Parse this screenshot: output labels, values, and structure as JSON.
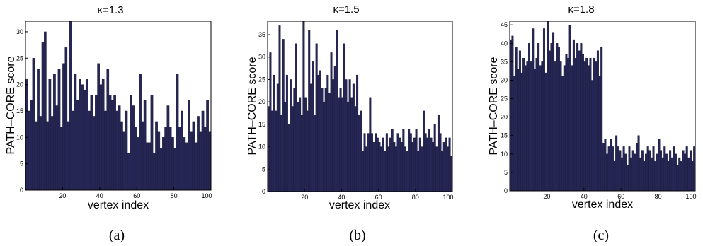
{
  "figure": {
    "captions": [
      "(a)",
      "(b)",
      "(c)"
    ]
  },
  "colors": {
    "bar": "#262655"
  },
  "chart_data": [
    {
      "type": "bar",
      "title": "κ=1.3",
      "xlabel": "vertex index",
      "ylabel": "PATH–CORE score",
      "xlim": [
        0,
        100
      ],
      "ylim": [
        0,
        32
      ],
      "xticks": [
        20,
        40,
        60,
        80,
        100
      ],
      "yticks": [
        0,
        5,
        10,
        15,
        20,
        25,
        30
      ],
      "values": [
        21,
        15,
        17,
        25,
        13,
        23,
        14,
        28,
        30,
        13,
        21,
        14,
        22,
        16,
        23,
        12,
        24,
        27,
        13,
        32,
        15,
        22,
        17,
        21,
        20,
        19,
        21,
        15,
        18,
        14,
        18,
        24,
        20,
        21,
        15,
        23,
        18,
        17,
        18,
        15,
        16,
        13,
        11,
        15,
        7,
        18,
        16,
        12,
        10,
        22,
        13,
        17,
        9,
        9,
        18,
        7,
        13,
        11,
        8,
        10,
        12,
        16,
        12,
        10,
        8,
        22,
        12,
        15,
        10,
        9,
        17,
        11,
        13,
        9,
        14,
        11,
        15,
        12,
        17,
        11
      ]
    },
    {
      "type": "bar",
      "title": "κ=1.5",
      "xlabel": "vertex index",
      "ylabel": "PATH–CORE score",
      "xlim": [
        0,
        100
      ],
      "ylim": [
        0,
        38
      ],
      "xticks": [
        20,
        40,
        60,
        80,
        100
      ],
      "yticks": [
        0,
        5,
        10,
        15,
        20,
        25,
        30,
        35
      ],
      "values": [
        19,
        31,
        18,
        26,
        18,
        24,
        37,
        17,
        34,
        20,
        26,
        15,
        25,
        19,
        23,
        33,
        20,
        21,
        17,
        38,
        21,
        18,
        36,
        24,
        29,
        17,
        33,
        26,
        27,
        23,
        20,
        23,
        26,
        22,
        31,
        25,
        28,
        36,
        21,
        23,
        21,
        33,
        25,
        20,
        25,
        21,
        24,
        19,
        26,
        17,
        18,
        9,
        13,
        10,
        13,
        21,
        13,
        11,
        13,
        12,
        11,
        10,
        12,
        9,
        13,
        10,
        12,
        14,
        11,
        10,
        13,
        12,
        11,
        14,
        10,
        9,
        14,
        13,
        11,
        12,
        14,
        9,
        12,
        10,
        18,
        13,
        12,
        14,
        12,
        11,
        15,
        10,
        17,
        13,
        9,
        11,
        12,
        10,
        12,
        8
      ]
    },
    {
      "type": "bar",
      "title": "κ=1.8",
      "xlabel": "vertex index",
      "ylabel": "PATH–CORE score",
      "xlim": [
        0,
        100
      ],
      "ylim": [
        0,
        46
      ],
      "xticks": [
        20,
        40,
        60,
        80,
        100
      ],
      "yticks": [
        0,
        5,
        10,
        15,
        20,
        25,
        30,
        35,
        40,
        45
      ],
      "values": [
        41,
        42,
        31,
        39,
        33,
        38,
        32,
        36,
        34,
        35,
        40,
        35,
        44,
        33,
        36,
        40,
        34,
        35,
        44,
        32,
        46,
        38,
        40,
        43,
        35,
        40,
        39,
        35,
        31,
        34,
        37,
        36,
        45,
        34,
        41,
        36,
        40,
        38,
        40,
        37,
        35,
        36,
        34,
        36,
        30,
        36,
        35,
        38,
        31,
        39,
        13,
        14,
        10,
        12,
        14,
        12,
        8,
        15,
        12,
        11,
        9,
        12,
        10,
        7,
        12,
        9,
        11,
        10,
        13,
        15,
        9,
        11,
        8,
        10,
        12,
        11,
        9,
        12,
        8,
        10,
        14,
        11,
        9,
        12,
        10,
        8,
        11,
        9,
        12,
        10,
        7,
        9,
        8,
        11,
        10,
        12,
        9,
        11,
        8,
        12
      ]
    }
  ]
}
